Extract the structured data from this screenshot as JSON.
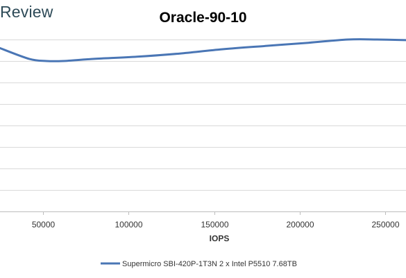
{
  "brand": "Review",
  "chart_data": {
    "type": "line",
    "title": "Oracle-90-10",
    "xlabel": "IOPS",
    "ylabel": "",
    "xlim": [
      25000,
      262000
    ],
    "ylim": [
      0,
      8
    ],
    "x_ticks": [
      {
        "value": 50000,
        "label": "50000"
      },
      {
        "value": 100000,
        "label": "100000"
      },
      {
        "value": 150000,
        "label": "150000"
      },
      {
        "value": 200000,
        "label": "200000"
      },
      {
        "value": 250000,
        "label": "250000"
      }
    ],
    "y_gridlines": [
      0,
      1,
      2,
      3,
      4,
      5,
      6,
      7,
      8
    ],
    "grid": true,
    "legend_position": "bottom",
    "series": [
      {
        "name": "Supermicro SBI-420P-1T3N 2 x Intel P5510 7.68TB",
        "color": "#4a76b5",
        "x": [
          25000,
          42000,
          52000,
          62000,
          80000,
          105000,
          130000,
          155000,
          180000,
          205000,
          228000,
          245000,
          262000
        ],
        "y": [
          7.6,
          7.1,
          7.0,
          7.0,
          7.1,
          7.2,
          7.35,
          7.55,
          7.7,
          7.85,
          8.0,
          8.0,
          7.97
        ]
      }
    ]
  }
}
